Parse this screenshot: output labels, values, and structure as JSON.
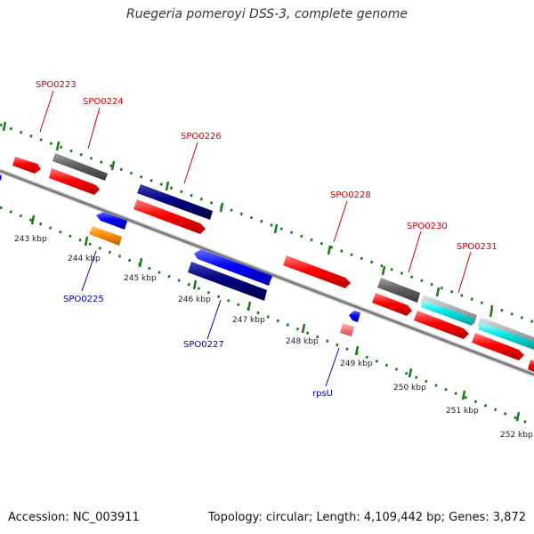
{
  "title": "Ruegeria pomeroyi DSS-3, complete genome",
  "footer": {
    "accession": "Accession: NC_003911",
    "summary": "Topology: circular; Length: 4,109,442 bp; Genes: 3,872"
  },
  "ticks": [
    "243 kbp",
    "244 kbp",
    "245 kbp",
    "246 kbp",
    "247 kbp",
    "248 kbp",
    "249 kbp",
    "250 kbp",
    "251 kbp",
    "252 kbp"
  ],
  "labels": {
    "spo0223": "SPO0223",
    "spo0224": "SPO0224",
    "spo0225": "SPO0225",
    "spo0226": "SPO0226",
    "spo0227": "SPO0227",
    "spo0228": "SPO0228",
    "spo0230": "SPO0230",
    "spo0231": "SPO0231",
    "rpsu": "rpsU"
  },
  "colors": {
    "cds": "#ff0000",
    "gene": "#606060",
    "forward_feature": "#000080",
    "reverse_feature": "#0000ff",
    "cyan_feature": "#00e5e5",
    "light_gray_feature": "#b0b0b0",
    "orange_feature": "#ff8c00",
    "pink_feature": "#f08080",
    "forward_label": "#cc0000",
    "reverse_label": "#0000aa",
    "ruler": "#1a7a1a"
  }
}
